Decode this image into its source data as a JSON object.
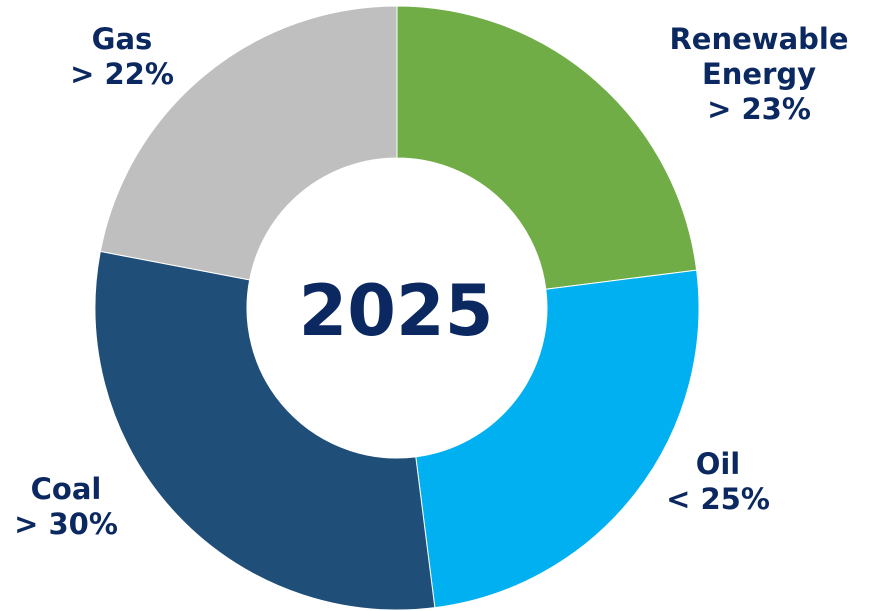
{
  "chart_data": {
    "type": "pie",
    "variant": "donut",
    "center_label": "2025",
    "slices": [
      {
        "name": "Renewable Energy",
        "label_lines": [
          "Renewable",
          "Energy"
        ],
        "value_label": "> 23%",
        "value": 23,
        "color": "#70ad47"
      },
      {
        "name": "Oil",
        "label_lines": [
          "Oil"
        ],
        "value_label": "< 25%",
        "value": 25,
        "color": "#00b0f0"
      },
      {
        "name": "Coal",
        "label_lines": [
          "Coal"
        ],
        "value_label": "> 30%",
        "value": 30,
        "color": "#1f4e79"
      },
      {
        "name": "Gas",
        "label_lines": [
          "Gas"
        ],
        "value_label": "> 22%",
        "value": 22,
        "color": "#bfbfbf"
      }
    ],
    "start_angle_deg": 0,
    "direction": "clockwise",
    "legend": "none",
    "label_color": "#0b2960"
  }
}
